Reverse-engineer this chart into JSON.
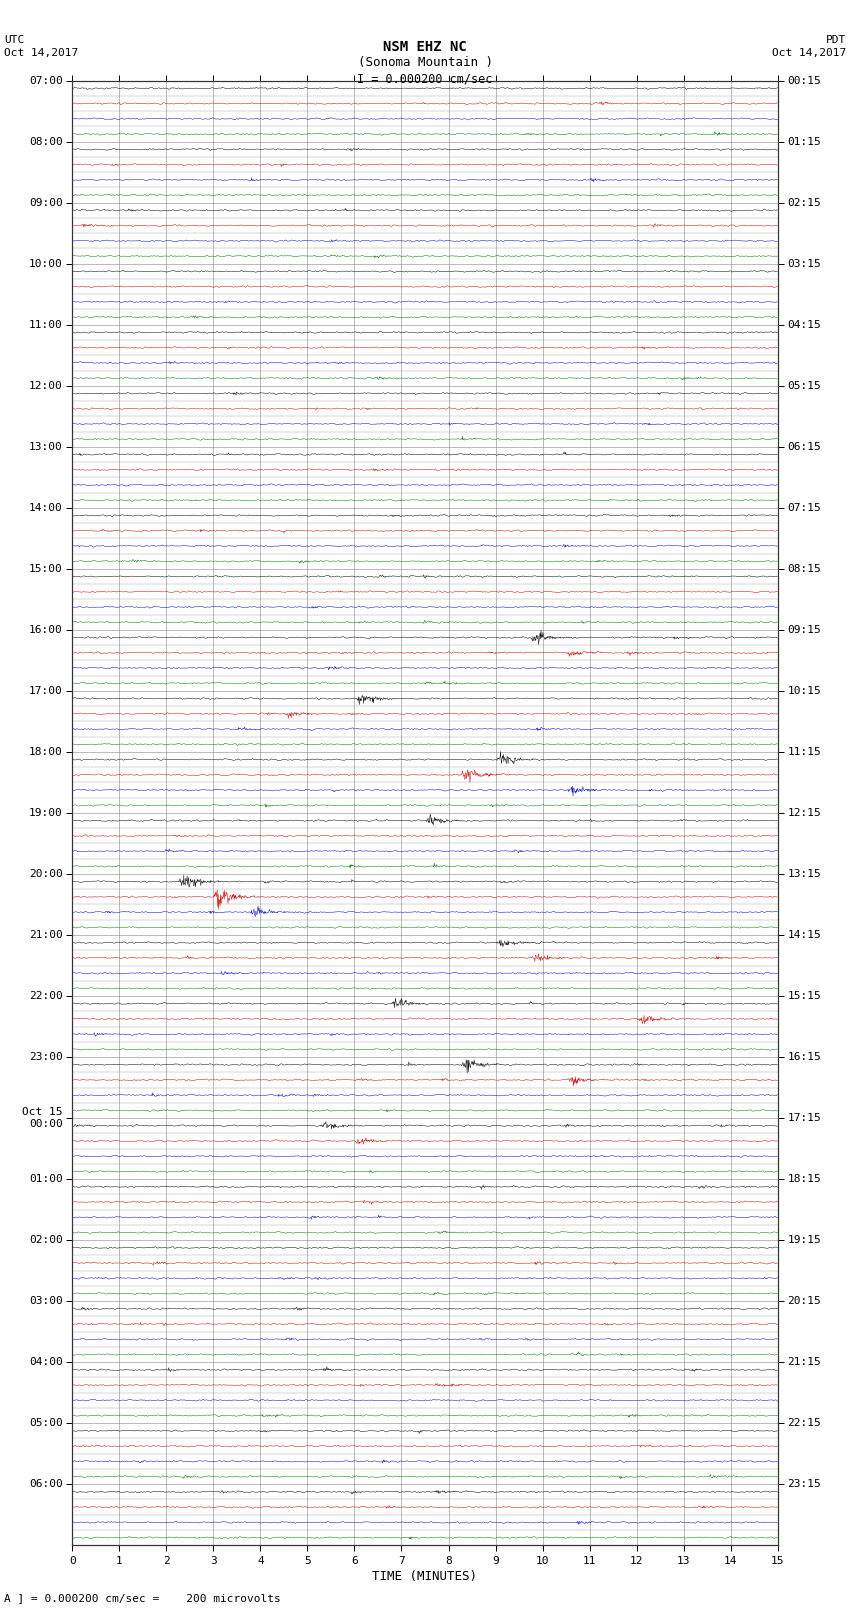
{
  "title_line1": "NSM EHZ NC",
  "title_line2": "(Sonoma Mountain )",
  "title_line3": "I = 0.000200 cm/sec",
  "left_header_line1": "UTC",
  "left_header_line2": "Oct 14,2017",
  "right_header_line1": "PDT",
  "right_header_line2": "Oct 14,2017",
  "xlabel": "TIME (MINUTES)",
  "footer": "A ] = 0.000200 cm/sec =    200 microvolts",
  "x_ticks": [
    0,
    1,
    2,
    3,
    4,
    5,
    6,
    7,
    8,
    9,
    10,
    11,
    12,
    13,
    14,
    15
  ],
  "xlim": [
    0,
    15
  ],
  "background_color": "#ffffff",
  "grid_color": "#888888",
  "trace_colors": [
    "#000000",
    "#cc0000",
    "#0000cc",
    "#007700"
  ],
  "utc_labels": [
    "07:00",
    "",
    "",
    "",
    "08:00",
    "",
    "",
    "",
    "09:00",
    "",
    "",
    "",
    "10:00",
    "",
    "",
    "",
    "11:00",
    "",
    "",
    "",
    "12:00",
    "",
    "",
    "",
    "13:00",
    "",
    "",
    "",
    "14:00",
    "",
    "",
    "",
    "15:00",
    "",
    "",
    "",
    "16:00",
    "",
    "",
    "",
    "17:00",
    "",
    "",
    "",
    "18:00",
    "",
    "",
    "",
    "19:00",
    "",
    "",
    "",
    "20:00",
    "",
    "",
    "",
    "21:00",
    "",
    "",
    "",
    "22:00",
    "",
    "",
    "",
    "23:00",
    "",
    "",
    "",
    "Oct 15\n00:00",
    "",
    "",
    "",
    "01:00",
    "",
    "",
    "",
    "02:00",
    "",
    "",
    "",
    "03:00",
    "",
    "",
    "",
    "04:00",
    "",
    "",
    "",
    "05:00",
    "",
    "",
    "",
    "06:00",
    "",
    "",
    ""
  ],
  "pdt_labels": [
    "00:15",
    "",
    "",
    "",
    "01:15",
    "",
    "",
    "",
    "02:15",
    "",
    "",
    "",
    "03:15",
    "",
    "",
    "",
    "04:15",
    "",
    "",
    "",
    "05:15",
    "",
    "",
    "",
    "06:15",
    "",
    "",
    "",
    "07:15",
    "",
    "",
    "",
    "08:15",
    "",
    "",
    "",
    "09:15",
    "",
    "",
    "",
    "10:15",
    "",
    "",
    "",
    "11:15",
    "",
    "",
    "",
    "12:15",
    "",
    "",
    "",
    "13:15",
    "",
    "",
    "",
    "14:15",
    "",
    "",
    "",
    "15:15",
    "",
    "",
    "",
    "16:15",
    "",
    "",
    "",
    "17:15",
    "",
    "",
    "",
    "18:15",
    "",
    "",
    "",
    "19:15",
    "",
    "",
    "",
    "20:15",
    "",
    "",
    "",
    "21:15",
    "",
    "",
    "",
    "22:15",
    "",
    "",
    "",
    "23:15",
    "",
    "",
    ""
  ],
  "num_rows": 96,
  "samples_per_row": 1500,
  "noise_amplitude": 0.08,
  "amplitude_scale": 0.28
}
